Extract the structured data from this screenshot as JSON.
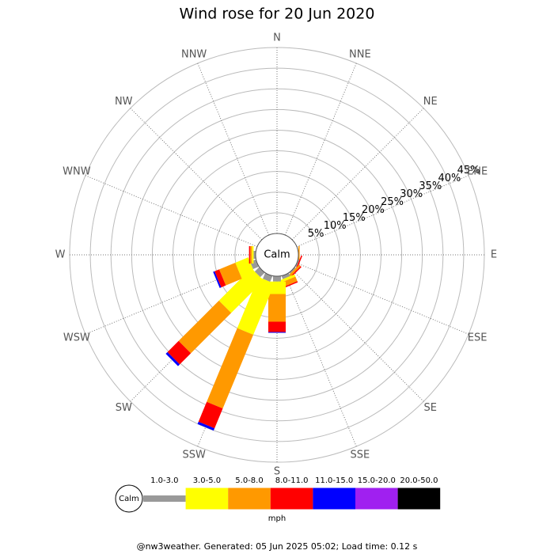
{
  "chart_data": {
    "type": "windrose",
    "title": "Wind rose for 20 Jun 2020",
    "categories": [
      "N",
      "NNE",
      "NE",
      "ENE",
      "E",
      "ESE",
      "SE",
      "SSE",
      "S",
      "SSW",
      "SW",
      "WSW",
      "W",
      "WNW",
      "NW",
      "NNW"
    ],
    "center_label": "Calm",
    "rlim": [
      0,
      45
    ],
    "rticks": [
      {
        "value": 5,
        "label": "5%"
      },
      {
        "value": 10,
        "label": "10%"
      },
      {
        "value": 15,
        "label": "15%"
      },
      {
        "value": 20,
        "label": "20%"
      },
      {
        "value": 25,
        "label": "25%"
      },
      {
        "value": 30,
        "label": "30%"
      },
      {
        "value": 35,
        "label": "35%"
      },
      {
        "value": 40,
        "label": "40%"
      },
      {
        "value": 45,
        "label": "45%"
      }
    ],
    "series": [
      {
        "name": "1.0-3.0",
        "color": "#999999",
        "values": [
          0,
          0,
          0,
          0,
          0,
          0.3,
          0.3,
          0.8,
          1.3,
          1.5,
          1.5,
          1.5,
          0.5,
          0,
          0,
          0
        ]
      },
      {
        "name": "3.0-5.0",
        "color": "#ffff00",
        "values": [
          0,
          0,
          0,
          0,
          0,
          0,
          0,
          0.6,
          3,
          13.4,
          11.1,
          3.4,
          0.4,
          0,
          0,
          0
        ]
      },
      {
        "name": "5.0-8.0",
        "color": "#ff9900",
        "values": [
          0,
          0,
          0,
          0,
          0.3,
          0,
          0.5,
          1.2,
          6.7,
          19.3,
          13.8,
          4.2,
          0.4,
          0,
          0,
          0
        ]
      },
      {
        "name": "8.0-11.0",
        "color": "#ff0000",
        "values": [
          0,
          0,
          0,
          0,
          0,
          0.3,
          0.3,
          0.3,
          2.5,
          5.2,
          3.8,
          1.2,
          0.3,
          0,
          0,
          0
        ]
      },
      {
        "name": "11.0-15.0",
        "color": "#0000ff",
        "values": [
          0,
          0,
          0,
          0,
          0,
          0,
          0,
          0,
          0.2,
          0.6,
          0.6,
          0.4,
          0,
          0,
          0,
          0
        ]
      },
      {
        "name": "15.0-20.0",
        "color": "#a020f0",
        "values": [
          0,
          0,
          0,
          0,
          0,
          0,
          0,
          0,
          0,
          0,
          0,
          0,
          0,
          0,
          0,
          0
        ]
      },
      {
        "name": "20.0-50.0",
        "color": "#000000",
        "values": [
          0,
          0,
          0,
          0,
          0,
          0,
          0,
          0,
          0,
          0,
          0,
          0,
          0,
          0,
          0,
          0
        ]
      }
    ],
    "legend_center_label": "Calm",
    "units": "mph",
    "footer": "@nw3weather. Generated: 05 Jun 2025 05:02; Load time: 0.12 s"
  }
}
